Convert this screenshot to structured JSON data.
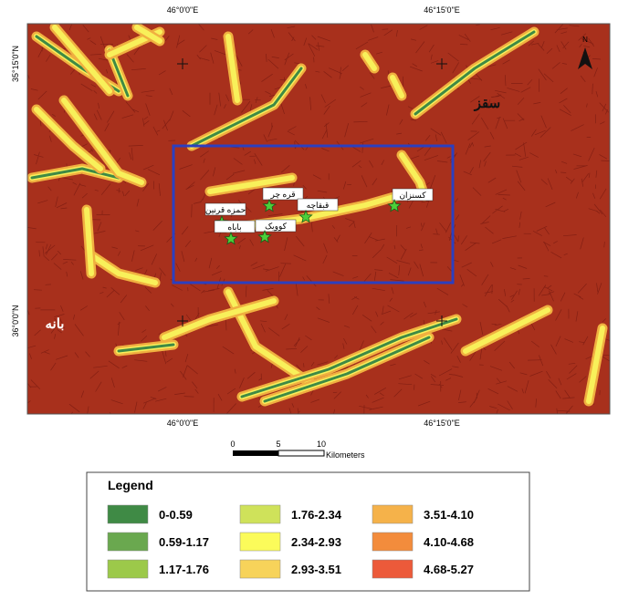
{
  "map": {
    "top_labels": [
      "46°0'0\"E",
      "46°15'0\"E"
    ],
    "bottom_labels": [
      "46°0'0\"E",
      "46°15'0\"E"
    ],
    "left_labels": [
      "35°15'0\"N",
      "36°0'0\"N"
    ],
    "north": "N",
    "cities": [
      "سقز",
      "بانه"
    ],
    "sites": [
      "قره چر",
      "حمزه قرنین",
      "باباه",
      "کوویک",
      "قبقاچه",
      "کسنزان"
    ]
  },
  "scale_bar": {
    "ticks": [
      "0",
      "5",
      "10"
    ],
    "unit": "Kilometers"
  },
  "legend": {
    "title": "Legend",
    "items": [
      {
        "label": "0-0.59",
        "color": "#3f8a45"
      },
      {
        "label": "0.59-1.17",
        "color": "#6aa84f"
      },
      {
        "label": "1.17-1.76",
        "color": "#9cc94a"
      },
      {
        "label": "1.76-2.34",
        "color": "#cfe25a"
      },
      {
        "label": "2.34-2.93",
        "color": "#fbfb5a"
      },
      {
        "label": "2.93-3.51",
        "color": "#f7d35a"
      },
      {
        "label": "3.51-4.10",
        "color": "#f5b24a"
      },
      {
        "label": "4.10-4.68",
        "color": "#f38c3c"
      },
      {
        "label": "4.68-5.27",
        "color": "#ec5a3a"
      }
    ]
  }
}
